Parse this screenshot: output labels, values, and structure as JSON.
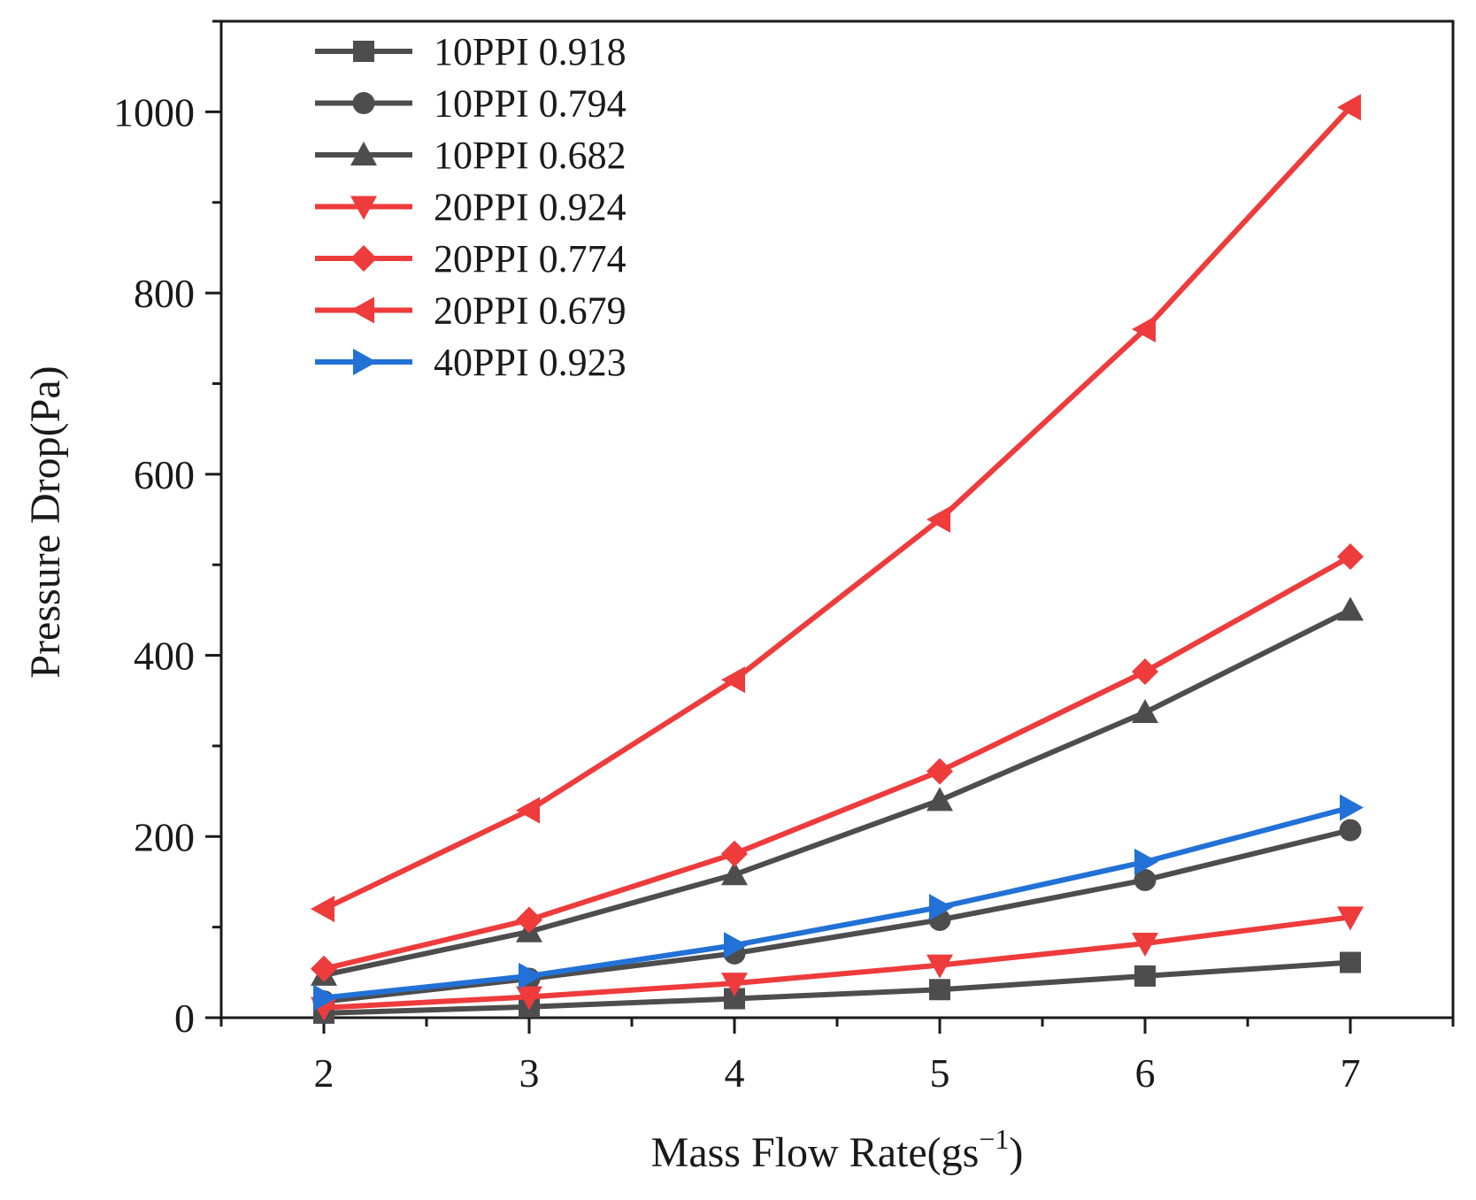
{
  "chart_data": {
    "type": "line",
    "title": "",
    "xlabel": "Mass Flow Rate(gs",
    "xlabel_sup": "−1",
    "xlabel_close": ")",
    "ylabel": "Pressure Drop(Pa)",
    "xlim": [
      1.5,
      7.5
    ],
    "ylim": [
      0,
      1100
    ],
    "xticks": [
      2,
      3,
      4,
      5,
      6,
      7
    ],
    "yticks": [
      0,
      200,
      400,
      600,
      800,
      1000
    ],
    "grid": false,
    "legend_position": "top-left",
    "x": [
      2,
      3,
      4,
      5,
      6,
      7
    ],
    "series": [
      {
        "name": "10PPI 0.918",
        "color": "#4d4d4d",
        "marker": "square",
        "values": [
          5,
          12,
          21,
          31,
          46,
          61
        ]
      },
      {
        "name": "10PPI 0.794",
        "color": "#4d4d4d",
        "marker": "circle",
        "values": [
          18,
          43,
          71,
          108,
          152,
          207
        ]
      },
      {
        "name": "10PPI 0.682",
        "color": "#4d4d4d",
        "marker": "triangle-up",
        "values": [
          47,
          95,
          158,
          240,
          337,
          450
        ]
      },
      {
        "name": "20PPI 0.924",
        "color": "#ee3b3b",
        "marker": "triangle-down",
        "values": [
          11,
          23,
          38,
          58,
          82,
          111
        ]
      },
      {
        "name": "20PPI 0.774",
        "color": "#ee3b3b",
        "marker": "diamond",
        "values": [
          54,
          108,
          181,
          272,
          382,
          509
        ]
      },
      {
        "name": "20PPI 0.679",
        "color": "#ee3b3b",
        "marker": "triangle-left",
        "values": [
          120,
          229,
          373,
          550,
          760,
          1005
        ]
      },
      {
        "name": "40PPI 0.923",
        "color": "#2271d6",
        "marker": "triangle-right",
        "values": [
          22,
          46,
          80,
          122,
          172,
          232
        ]
      }
    ]
  }
}
